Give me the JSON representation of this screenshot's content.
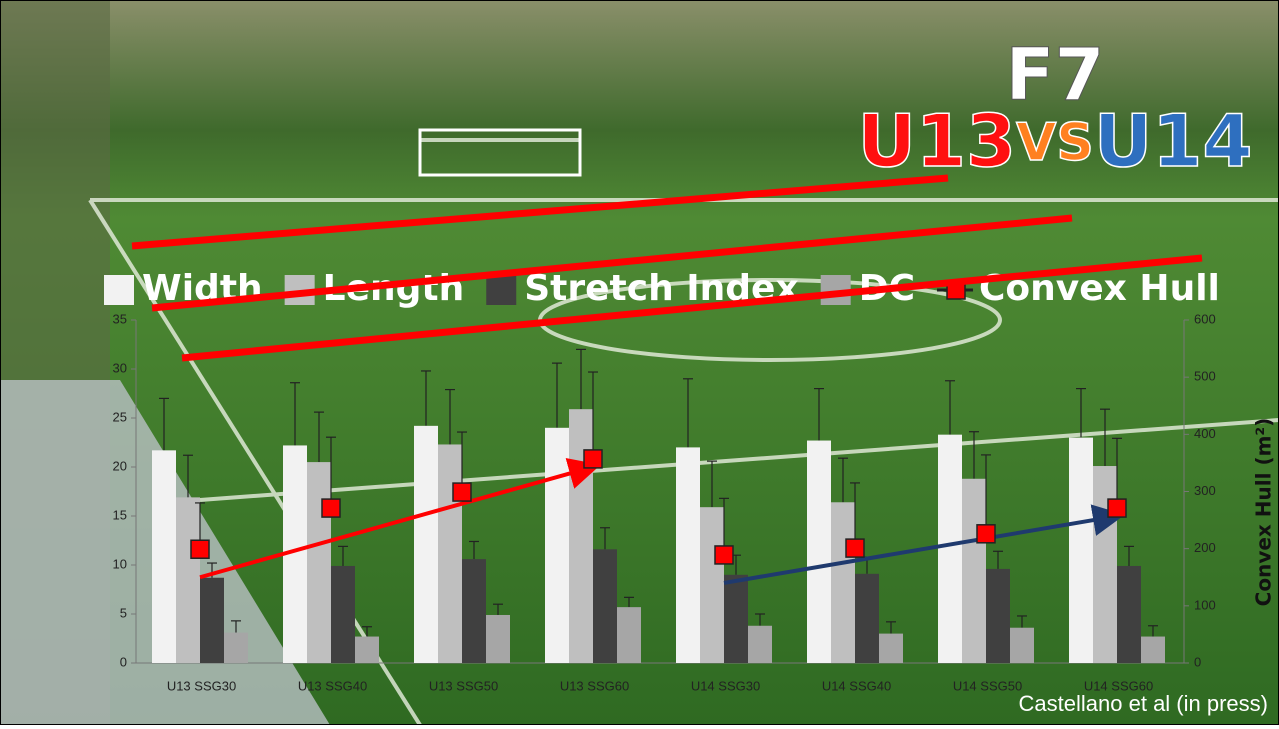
{
  "chart_data": {
    "type": "bar",
    "title": "F7",
    "headline": [
      "U13",
      "VS",
      "U14"
    ],
    "citation": "Castellano et al (in press)",
    "y2_label": "Convex Hull (m²)",
    "categories": [
      "U13 SSG30",
      "U13 SSG40",
      "U13 SSG50",
      "U13 SSG60",
      "U14 SSG30",
      "U14 SSG40",
      "U14 SSG50",
      "U14 SSG60"
    ],
    "series": [
      {
        "name": "Width",
        "color": "#f2f2f2",
        "values": [
          21.7,
          22.2,
          24.2,
          24.0,
          22.0,
          22.7,
          23.3,
          23.0
        ],
        "errors": [
          5.3,
          6.4,
          5.6,
          6.6,
          7.0,
          5.3,
          5.5,
          5.0
        ]
      },
      {
        "name": "Length",
        "color": "#bfbfbf",
        "values": [
          16.9,
          20.5,
          22.3,
          25.9,
          15.9,
          16.4,
          18.8,
          20.1
        ],
        "errors": [
          4.3,
          5.1,
          5.6,
          6.1,
          4.7,
          4.5,
          4.8,
          5.8
        ]
      },
      {
        "name": "Stretch Index",
        "color": "#404040",
        "values": [
          8.7,
          9.9,
          10.6,
          11.6,
          9.0,
          9.1,
          9.6,
          9.9
        ],
        "errors": [
          1.5,
          2.0,
          1.8,
          2.2,
          2.0,
          1.7,
          1.8,
          2.0
        ]
      },
      {
        "name": "DC",
        "color": "#a6a6a6",
        "values": [
          3.1,
          2.7,
          4.9,
          5.7,
          3.8,
          3.0,
          3.6,
          2.7
        ],
        "errors": [
          1.2,
          1.0,
          1.1,
          1.0,
          1.2,
          1.2,
          1.2,
          1.1
        ]
      },
      {
        "name": "Convex Hull",
        "color": "#ff0000",
        "axis": "y2",
        "marker": "square",
        "values": [
          199,
          271,
          299,
          357,
          189,
          201,
          226,
          271
        ],
        "errors": [
          81,
          124,
          105,
          152,
          99,
          114,
          138,
          122
        ]
      }
    ],
    "ylim": [
      0,
      35
    ],
    "yticks": [
      0,
      5,
      10,
      15,
      20,
      25,
      30,
      35
    ],
    "y2lim": [
      0,
      600
    ],
    "y2ticks": [
      0,
      100,
      200,
      300,
      400,
      500,
      600
    ]
  }
}
